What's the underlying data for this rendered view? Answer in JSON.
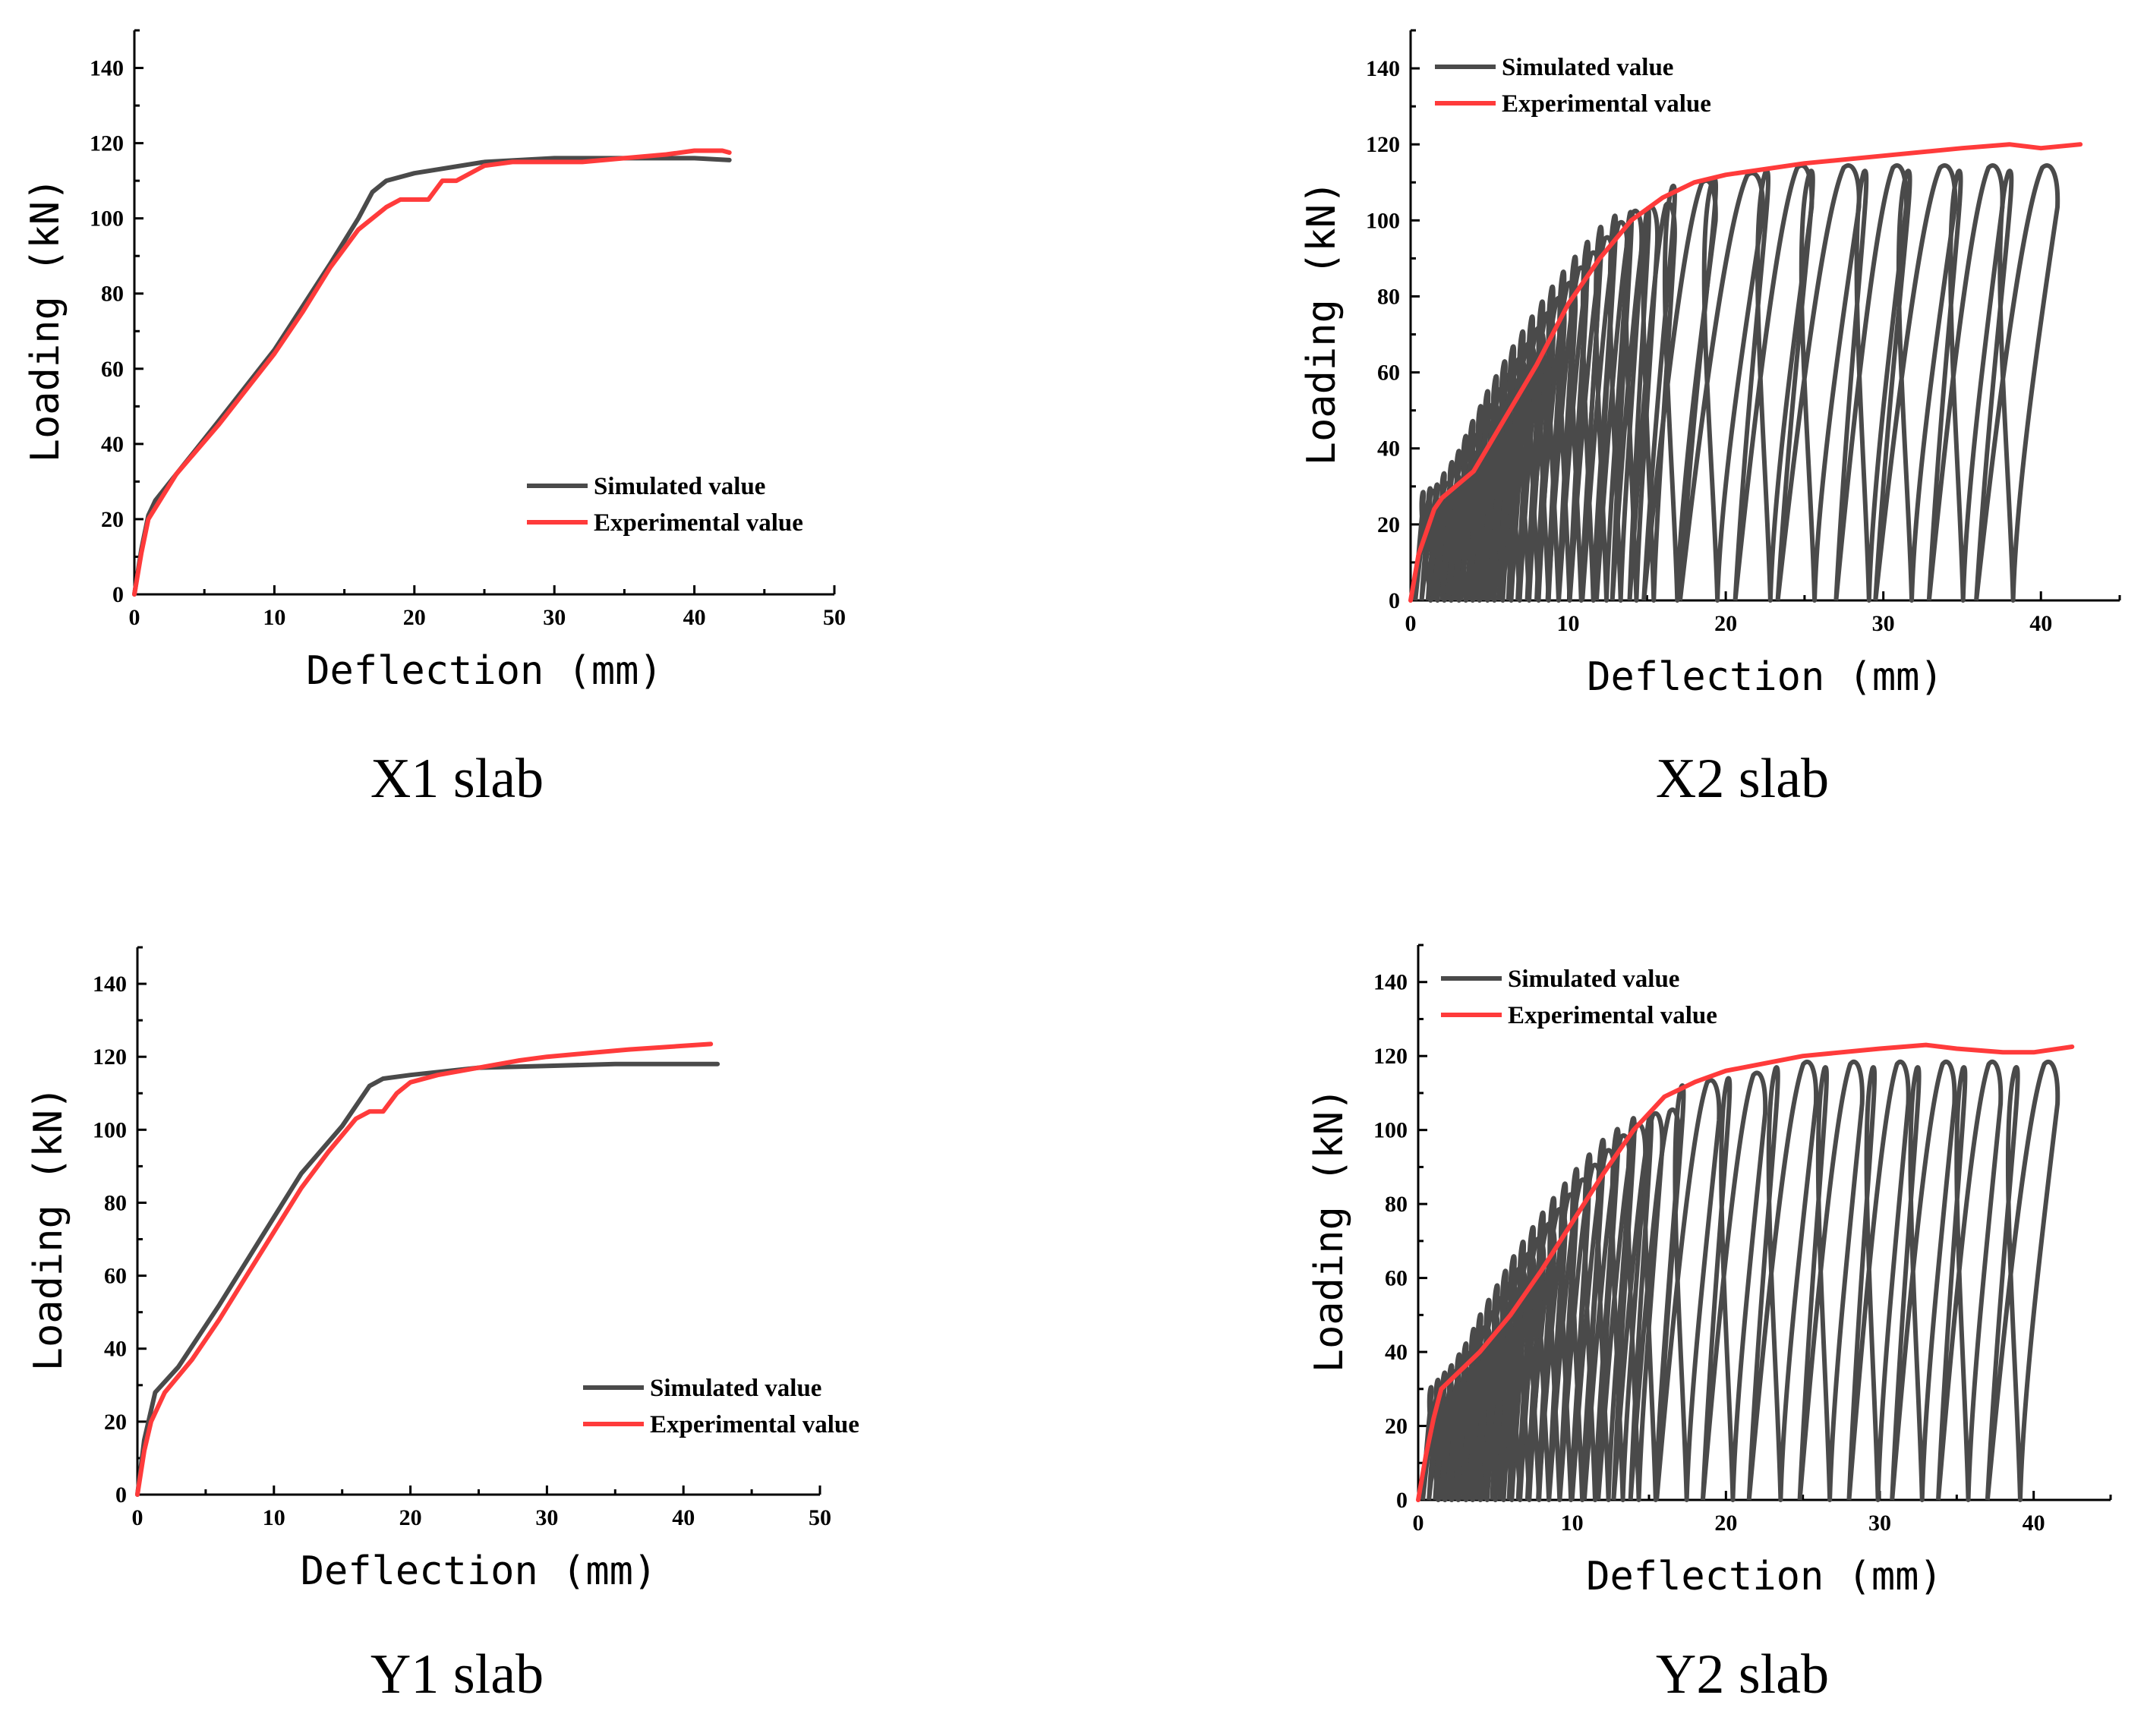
{
  "chart_data": [
    {
      "id": "X1",
      "type": "line",
      "caption": "X1 slab",
      "xlabel": "Deflection (mm)",
      "ylabel": "Loading (kN)",
      "xlim": [
        0,
        50
      ],
      "ylim": [
        0,
        150
      ],
      "xticks": [
        "0",
        "10",
        "20",
        "30",
        "40",
        "50"
      ],
      "yticks": [
        "0",
        "20",
        "40",
        "60",
        "80",
        "100",
        "120",
        "140"
      ],
      "grid": false,
      "legend_position": "bottom-right",
      "series": [
        {
          "name": "Simulated value",
          "color": "#4a4a4a",
          "style": "monotonic",
          "points": [
            [
              0,
              0
            ],
            [
              0.5,
              12
            ],
            [
              1,
              21
            ],
            [
              1.5,
              25
            ],
            [
              3,
              32
            ],
            [
              6,
              46
            ],
            [
              10,
              65
            ],
            [
              14,
              88
            ],
            [
              16,
              100
            ],
            [
              17,
              107
            ],
            [
              18,
              110
            ],
            [
              20,
              112
            ],
            [
              25,
              115
            ],
            [
              30,
              116
            ],
            [
              35,
              116
            ],
            [
              40,
              116
            ],
            [
              42.5,
              115.5
            ]
          ]
        },
        {
          "name": "Experimental value",
          "color": "#ff3b3b",
          "style": "monotonic",
          "points": [
            [
              0,
              0
            ],
            [
              0.5,
              11
            ],
            [
              1,
              20
            ],
            [
              2,
              26
            ],
            [
              3,
              32
            ],
            [
              6,
              45
            ],
            [
              10,
              64
            ],
            [
              12,
              75
            ],
            [
              14,
              87
            ],
            [
              16,
              97
            ],
            [
              18,
              103
            ],
            [
              19,
              105
            ],
            [
              21,
              105
            ],
            [
              22,
              110
            ],
            [
              23,
              110
            ],
            [
              25,
              114
            ],
            [
              27,
              115
            ],
            [
              30,
              115
            ],
            [
              32,
              115
            ],
            [
              35,
              116
            ],
            [
              38,
              117
            ],
            [
              40,
              118
            ],
            [
              42,
              118
            ],
            [
              42.5,
              117.5
            ]
          ]
        }
      ]
    },
    {
      "id": "X2",
      "type": "line",
      "caption": "X2 slab",
      "xlabel": "Deflection (mm)",
      "ylabel": "Loading (kN)",
      "xlim": [
        0,
        45
      ],
      "ylim": [
        0,
        150
      ],
      "xticks": [
        "0",
        "10",
        "20",
        "30",
        "40"
      ],
      "yticks": [
        "0",
        "20",
        "40",
        "60",
        "80",
        "100",
        "120",
        "140"
      ],
      "grid": false,
      "legend_position": "top-left",
      "series": [
        {
          "name": "Simulated value",
          "color": "#4a4a4a",
          "style": "hysteresis",
          "loops": [
            [
              0.3,
              1.5,
              29
            ],
            [
              0.7,
              2.0,
              30
            ],
            [
              1.1,
              2.5,
              31
            ],
            [
              1.5,
              3.0,
              34
            ],
            [
              2.0,
              3.5,
              37
            ],
            [
              2.4,
              4.0,
              40
            ],
            [
              2.8,
              4.5,
              44
            ],
            [
              3.2,
              5.0,
              48
            ],
            [
              3.7,
              5.5,
              52
            ],
            [
              4.1,
              6.0,
              56
            ],
            [
              4.6,
              6.6,
              60
            ],
            [
              5.1,
              7.2,
              64
            ],
            [
              5.6,
              7.8,
              68
            ],
            [
              6.2,
              8.4,
              72
            ],
            [
              6.8,
              9.0,
              76
            ],
            [
              7.4,
              9.7,
              80
            ],
            [
              8.0,
              10.4,
              84
            ],
            [
              8.7,
              11.1,
              88
            ],
            [
              9.4,
              11.9,
              92
            ],
            [
              10.1,
              12.8,
              96
            ],
            [
              10.9,
              13.7,
              100
            ],
            [
              11.8,
              14.6,
              103
            ],
            [
              12.8,
              15.6,
              104
            ],
            [
              13.9,
              16.7,
              105
            ],
            [
              14.8,
              19.3,
              111
            ],
            [
              17.1,
              22.3,
              113
            ],
            [
              20.6,
              25.4,
              115
            ],
            [
              23.3,
              28.4,
              115
            ],
            [
              27.0,
              31.4,
              115
            ],
            [
              29.5,
              34.5,
              115
            ],
            [
              32.9,
              37.5,
              115
            ],
            [
              35.9,
              41.0,
              115
            ]
          ]
        },
        {
          "name": "Experimental value",
          "color": "#ff3b3b",
          "style": "monotonic",
          "points": [
            [
              0,
              0
            ],
            [
              0.5,
              12
            ],
            [
              1,
              18
            ],
            [
              1.5,
              24
            ],
            [
              2,
              27
            ],
            [
              4,
              34
            ],
            [
              6,
              48
            ],
            [
              8,
              62
            ],
            [
              10,
              78
            ],
            [
              12,
              90
            ],
            [
              14,
              100
            ],
            [
              16,
              106
            ],
            [
              18,
              110
            ],
            [
              20,
              112
            ],
            [
              25,
              115
            ],
            [
              30,
              117
            ],
            [
              35,
              119
            ],
            [
              38,
              120
            ],
            [
              40,
              119
            ],
            [
              42.5,
              120
            ]
          ]
        }
      ]
    },
    {
      "id": "Y1",
      "type": "line",
      "caption": "Y1 slab",
      "xlabel": "Deflection (mm)",
      "ylabel": "Loading (kN)",
      "xlim": [
        0,
        50
      ],
      "ylim": [
        0,
        150
      ],
      "xticks": [
        "0",
        "10",
        "20",
        "30",
        "40",
        "50"
      ],
      "yticks": [
        "0",
        "20",
        "40",
        "60",
        "80",
        "100",
        "120",
        "140"
      ],
      "grid": false,
      "legend_position": "bottom-right",
      "series": [
        {
          "name": "Simulated value",
          "color": "#4a4a4a",
          "style": "monotonic",
          "points": [
            [
              0,
              0
            ],
            [
              0.5,
              15
            ],
            [
              1.3,
              28
            ],
            [
              3,
              35
            ],
            [
              6,
              52
            ],
            [
              9,
              70
            ],
            [
              12,
              88
            ],
            [
              15,
              101
            ],
            [
              17,
              112
            ],
            [
              18,
              114
            ],
            [
              20,
              115
            ],
            [
              25,
              117
            ],
            [
              30,
              117.5
            ],
            [
              35,
              118
            ],
            [
              40,
              118
            ],
            [
              42.5,
              118
            ]
          ]
        },
        {
          "name": "Experimental value",
          "color": "#ff3b3b",
          "style": "monotonic",
          "points": [
            [
              0,
              0
            ],
            [
              0.5,
              12
            ],
            [
              1,
              20
            ],
            [
              2,
              28
            ],
            [
              4,
              37
            ],
            [
              6,
              48
            ],
            [
              8,
              60
            ],
            [
              10,
              72
            ],
            [
              12,
              84
            ],
            [
              14,
              94
            ],
            [
              16,
              103
            ],
            [
              17,
              105
            ],
            [
              18,
              105
            ],
            [
              19,
              110
            ],
            [
              20,
              113
            ],
            [
              22,
              115
            ],
            [
              25,
              117
            ],
            [
              28,
              119
            ],
            [
              30,
              120
            ],
            [
              33,
              121
            ],
            [
              36,
              122
            ],
            [
              40,
              123
            ],
            [
              42,
              123.5
            ]
          ]
        }
      ]
    },
    {
      "id": "Y2",
      "type": "line",
      "caption": "Y2 slab",
      "xlabel": "Deflection (mm)",
      "ylabel": "Loading (kN)",
      "xlim": [
        0,
        45
      ],
      "ylim": [
        0,
        150
      ],
      "xticks": [
        "0",
        "10",
        "20",
        "30",
        "40"
      ],
      "yticks": [
        "0",
        "20",
        "40",
        "60",
        "80",
        "100",
        "120",
        "140"
      ],
      "grid": false,
      "legend_position": "top-left",
      "series": [
        {
          "name": "Simulated value",
          "color": "#4a4a4a",
          "style": "hysteresis",
          "loops": [
            [
              0.3,
              1.6,
              31
            ],
            [
              0.7,
              2.1,
              33
            ],
            [
              1.1,
              2.6,
              35
            ],
            [
              1.5,
              3.1,
              37
            ],
            [
              2.0,
              3.6,
              40
            ],
            [
              2.4,
              4.1,
              43
            ],
            [
              2.9,
              4.6,
              47
            ],
            [
              3.3,
              5.1,
              51
            ],
            [
              3.8,
              5.7,
              55
            ],
            [
              4.3,
              6.3,
              59
            ],
            [
              4.8,
              6.9,
              63
            ],
            [
              5.3,
              7.5,
              67
            ],
            [
              5.9,
              8.1,
              71
            ],
            [
              6.5,
              8.8,
              75
            ],
            [
              7.1,
              9.5,
              79
            ],
            [
              7.8,
              10.2,
              83
            ],
            [
              8.5,
              11.0,
              87
            ],
            [
              9.2,
              11.8,
              91
            ],
            [
              10.0,
              12.7,
              95
            ],
            [
              10.8,
              13.7,
              99
            ],
            [
              11.7,
              14.7,
              102
            ],
            [
              12.7,
              15.8,
              105
            ],
            [
              13.8,
              16.9,
              106
            ],
            [
              15.5,
              19.5,
              114
            ],
            [
              18.5,
              22.5,
              116
            ],
            [
              21.5,
              25.8,
              119
            ],
            [
              24.8,
              28.8,
              119
            ],
            [
              28.0,
              31.8,
              119
            ],
            [
              30.8,
              34.8,
              119
            ],
            [
              33.8,
              37.8,
              119
            ],
            [
              37.0,
              41.5,
              119
            ]
          ]
        },
        {
          "name": "Experimental value",
          "color": "#ff3b3b",
          "style": "monotonic",
          "points": [
            [
              0,
              0
            ],
            [
              0.5,
              12
            ],
            [
              1,
              22
            ],
            [
              1.5,
              30
            ],
            [
              2,
              32
            ],
            [
              4,
              40
            ],
            [
              6,
              50
            ],
            [
              8,
              62
            ],
            [
              10,
              75
            ],
            [
              12,
              88
            ],
            [
              14,
              100
            ],
            [
              16,
              109
            ],
            [
              18,
              113
            ],
            [
              20,
              116
            ],
            [
              25,
              120
            ],
            [
              30,
              122
            ],
            [
              33,
              123
            ],
            [
              35,
              122
            ],
            [
              38,
              121
            ],
            [
              40,
              121
            ],
            [
              42.5,
              122.5
            ]
          ]
        }
      ]
    }
  ]
}
